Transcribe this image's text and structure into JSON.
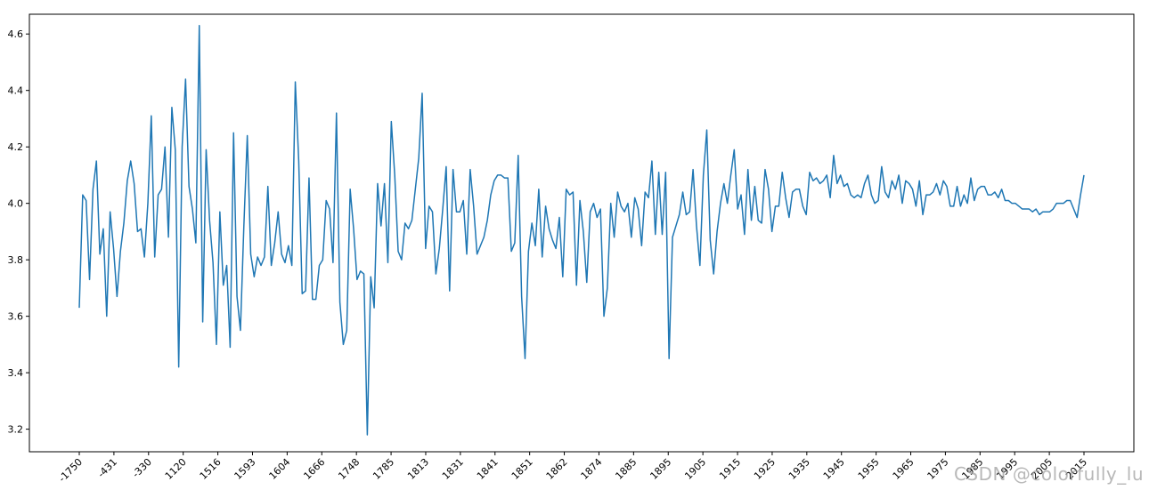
{
  "chart_data": {
    "type": "line",
    "title": "",
    "xlabel": "",
    "ylabel": "",
    "ylim": [
      3.12,
      4.67
    ],
    "yticks": [
      3.2,
      3.4,
      3.6,
      3.8,
      4.0,
      4.2,
      4.4,
      4.6
    ],
    "x_tick_labels": [
      "-1750",
      "-431",
      "-330",
      "1120",
      "1516",
      "1593",
      "1604",
      "1666",
      "1748",
      "1785",
      "1813",
      "1831",
      "1841",
      "1851",
      "1862",
      "1874",
      "1885",
      "1895",
      "1905",
      "1915",
      "1925",
      "1935",
      "1945",
      "1955",
      "1965",
      "1975",
      "1985",
      "1995",
      "2005",
      "2015"
    ],
    "grid": false,
    "line_color": "#1f77b4",
    "series": [
      {
        "values": [
          3.63,
          4.03,
          4.01,
          3.73,
          4.05,
          4.15,
          3.82,
          3.91,
          3.6,
          3.97,
          3.84,
          3.67,
          3.83,
          3.93,
          4.08,
          4.15,
          4.07,
          3.9,
          3.91,
          3.81,
          4.0,
          4.31,
          3.81,
          4.03,
          4.05,
          4.2,
          3.88,
          4.34,
          4.19,
          3.42,
          4.2,
          4.44,
          4.06,
          3.98,
          3.86,
          4.63,
          3.58,
          4.19,
          3.94,
          3.79,
          3.5,
          3.97,
          3.71,
          3.78,
          3.49,
          4.25,
          3.67,
          3.55,
          3.92,
          4.24,
          3.82,
          3.74,
          3.81,
          3.78,
          3.81,
          4.06,
          3.78,
          3.86,
          3.97,
          3.82,
          3.79,
          3.85,
          3.78,
          4.43,
          4.15,
          3.68,
          3.69,
          4.09,
          3.66,
          3.66,
          3.78,
          3.8,
          4.01,
          3.98,
          3.79,
          4.32,
          3.65,
          3.5,
          3.55,
          4.05,
          3.91,
          3.73,
          3.76,
          3.75,
          3.18,
          3.74,
          3.63,
          4.07,
          3.92,
          4.07,
          3.79,
          4.29,
          4.1,
          3.83,
          3.8,
          3.93,
          3.91,
          3.94,
          4.05,
          4.16,
          4.39,
          3.84,
          3.99,
          3.97,
          3.75,
          3.84,
          3.98,
          4.13,
          3.69,
          4.12,
          3.97,
          3.97,
          4.01,
          3.82,
          4.12,
          3.99,
          3.82,
          3.85,
          3.88,
          3.94,
          4.03,
          4.08,
          4.1,
          4.1,
          4.09,
          4.09,
          3.83,
          3.86,
          4.17,
          3.67,
          3.45,
          3.83,
          3.93,
          3.85,
          4.05,
          3.81,
          3.99,
          3.91,
          3.87,
          3.84,
          3.95,
          3.74,
          4.05,
          4.03,
          4.04,
          3.71,
          4.01,
          3.9,
          3.72,
          3.97,
          4.0,
          3.95,
          3.98,
          3.6,
          3.7,
          4.0,
          3.88,
          4.04,
          3.99,
          3.97,
          4.0,
          3.88,
          4.02,
          3.98,
          3.85,
          4.04,
          4.02,
          4.15,
          3.89,
          4.11,
          3.89,
          4.11,
          3.45,
          3.88,
          3.92,
          3.96,
          4.04,
          3.96,
          3.97,
          4.12,
          3.92,
          3.78,
          4.1,
          4.26,
          3.87,
          3.75,
          3.9,
          4.0,
          4.07,
          4.0,
          4.1,
          4.19,
          3.98,
          4.03,
          3.89,
          4.12,
          3.94,
          4.06,
          3.94,
          3.93,
          4.12,
          4.05,
          3.9,
          3.99,
          3.99,
          4.11,
          4.02,
          3.95,
          4.04,
          4.05,
          4.05,
          3.99,
          3.96,
          4.11,
          4.08,
          4.09,
          4.07,
          4.08,
          4.1,
          4.02,
          4.17,
          4.07,
          4.1,
          4.06,
          4.07,
          4.03,
          4.02,
          4.03,
          4.02,
          4.07,
          4.1,
          4.03,
          4.0,
          4.01,
          4.13,
          4.04,
          4.02,
          4.08,
          4.05,
          4.1,
          4.0,
          4.08,
          4.07,
          4.05,
          3.99,
          4.08,
          3.96,
          4.03,
          4.03,
          4.04,
          4.07,
          4.03,
          4.08,
          4.06,
          3.99,
          3.99,
          4.06,
          3.99,
          4.03,
          4.0,
          4.09,
          4.01,
          4.05,
          4.06,
          4.06,
          4.03,
          4.03,
          4.04,
          4.02,
          4.05,
          4.01,
          4.01,
          4.0,
          4.0,
          3.99,
          3.98,
          3.98,
          3.98,
          3.97,
          3.98,
          3.96,
          3.97,
          3.97,
          3.97,
          3.98,
          4.0,
          4.0,
          4.0,
          4.01,
          4.01,
          3.98,
          3.95,
          4.03,
          4.1
        ]
      }
    ]
  },
  "watermark": "CSDN @colorfully_lu"
}
